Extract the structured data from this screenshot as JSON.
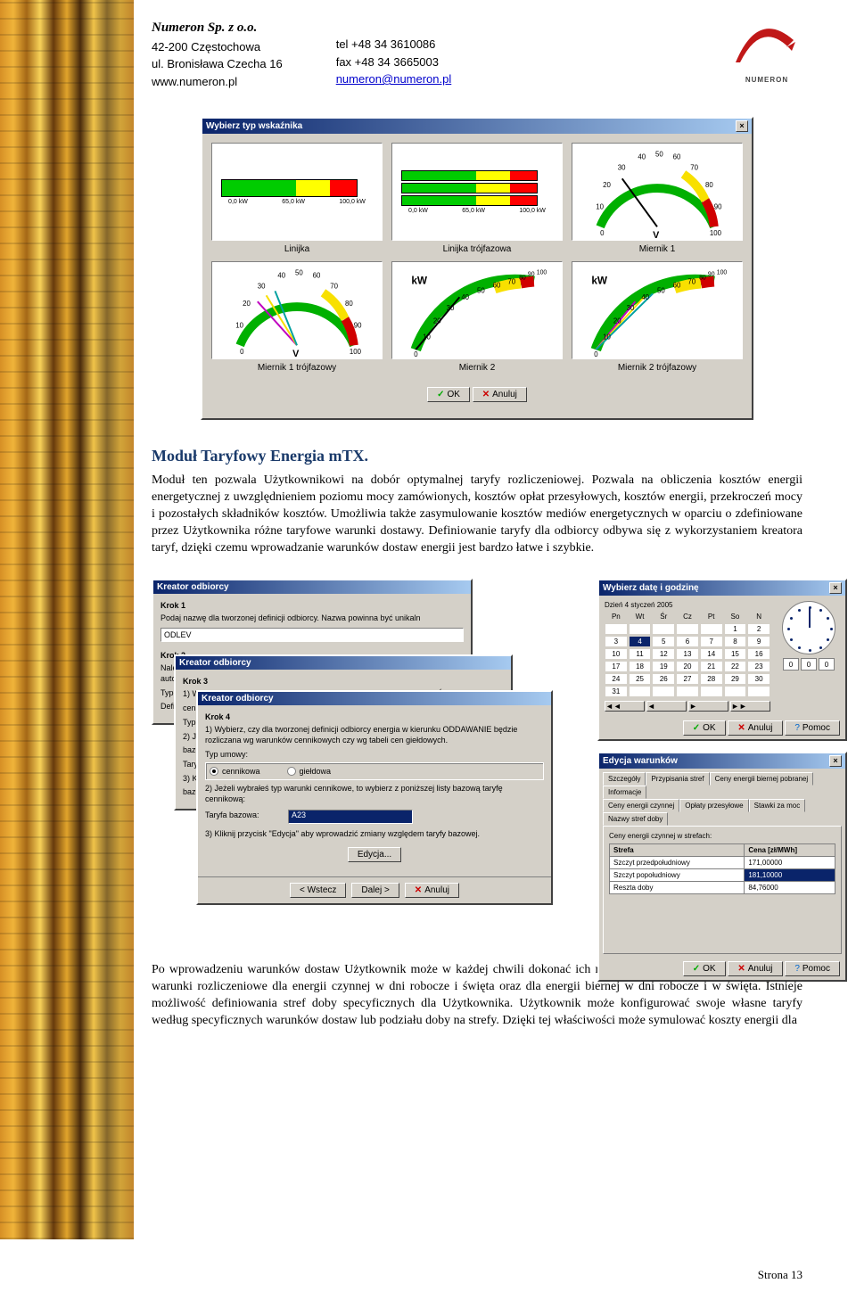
{
  "header": {
    "company_name": "Numeron Sp. z o.o.",
    "address1": "42-200 Częstochowa",
    "address2": "ul. Bronisława Czecha 16",
    "website": "www.numeron.pl",
    "tel": "tel +48 34 3610086",
    "fax": "fax +48 34 3665003",
    "email": "numeron@numeron.pl",
    "logo_text": "NUMERON",
    "logo_color": "#c01818"
  },
  "gauge_dialog": {
    "title": "Wybierz typ wskaźnika",
    "ok_label": "OK",
    "cancel_label": "Anuluj",
    "ruler_ticks": [
      "0,0 kW",
      "65,0 kW",
      "100,0 kW"
    ],
    "gauges": [
      {
        "label": "Linijka"
      },
      {
        "label": "Linijka trójfazowa"
      },
      {
        "label": "Miernik 1",
        "unit": "V",
        "scale": [
          "0",
          "10",
          "20",
          "30",
          "40",
          "50",
          "60",
          "70",
          "80",
          "90",
          "100"
        ]
      },
      {
        "label": "Miernik 1 trójfazowy",
        "unit": "V",
        "scale": [
          "0",
          "10",
          "20",
          "30",
          "40",
          "50",
          "60",
          "70",
          "80",
          "90",
          "100"
        ]
      },
      {
        "label": "Miernik 2",
        "unit": "kW",
        "scale": [
          "0",
          "10",
          "20",
          "30",
          "40",
          "50",
          "60",
          "70",
          "80",
          "90",
          "100"
        ]
      },
      {
        "label": "Miernik 2 trójfazowy",
        "unit": "kW",
        "scale": [
          "0",
          "10",
          "20",
          "30",
          "40",
          "50",
          "60",
          "70",
          "80",
          "90",
          "100"
        ]
      }
    ],
    "colors": {
      "green": "#00b000",
      "yellow": "#f8e000",
      "red": "#d00000",
      "needle1": "#c000c0",
      "needle2": "#00a0a0"
    }
  },
  "section": {
    "title": "Moduł Taryfowy Energia mTX.",
    "para1": "Moduł ten pozwala Użytkownikowi na dobór optymalnej taryfy rozliczeniowej. Pozwala na obliczenia kosztów energii energetycznej z uwzględnieniem poziomu mocy zamówionych, kosztów opłat przesyłowych, kosztów energii, przekroczeń mocy i pozostałych składników kosztów. Umożliwia także zasymulowanie kosztów mediów energetycznych w oparciu o zdefiniowane przez Użytkownika różne taryfowe warunki dostawy. Definiowanie taryfy dla odbiorcy odbywa się z wykorzystaniem kreatora taryf, dzięki czemu wprowadzanie warunków dostaw energii jest bardzo łatwe i szybkie.",
    "para2": "Po wprowadzeniu warunków dostaw Użytkownik może w każdej chwili dokonać ich modyfikacji. Osobno przechowywane są warunki rozliczeniowe dla energii czynnej w dni robocze i święta oraz dla energii biernej w dni robocze i w święta. Istnieje możliwość definiowania stref doby specyficznych dla Użytkownika. Użytkownik może konfigurować swoje własne taryfy według specyficznych warunków dostaw lub podziału doby na strefy. Dzięki tej właściwości może symulować koszty energii dla"
  },
  "wizard": {
    "title": "Kreator odbiorcy",
    "back": "< Wstecz",
    "next": "Dalej >",
    "cancel": "Anuluj",
    "edit": "Edycja...",
    "step1": {
      "title": "Krok 1",
      "text": "Podaj nazwę dla tworzonej definicji odbiorcy. Nazwa powinna być unikaln",
      "value": "ODLEV"
    },
    "step2": {
      "title": "Krok 2",
      "text": "Należy określić początek obowiązywania tworzonej definicji odbiorcy. Program automatycznie ustali go w dniu dzisiejszym. Aby zmienić tę date",
      "typ_um": "Typ um",
      "def": "Definicj"
    },
    "step3": {
      "title": "Krok 3",
      "text1": "1) Wybierz, czy dla tworzonej definicji odbiorcy energia w kierunku POBÓR b",
      "cen": "cen gieł",
      "typ": "Typ um",
      "cennik": "cer",
      "text2": "2) Jeżeli",
      "bazowa": "bazową t",
      "taryfa": "Taryfa ba",
      "text3": "3) Klikn",
      "bazowej": "bazowej"
    },
    "step4": {
      "title": "Krok 4",
      "text1": "1) Wybierz, czy dla tworzonej definicji odbiorcy energia w kierunku ODDAWANIE będzie rozliczana wg warunków cennikowych czy wg tabeli cen giełdowych.",
      "typ_label": "Typ umowy:",
      "radio1": "cennikowa",
      "radio2": "giełdowa",
      "text2": "2) Jeżeli wybrałeś typ warunki cennikowe, to wybierz z poniższej listy bazową taryfę cennikową:",
      "taryfa_label": "Taryfa bazowa:",
      "taryfa_value": "A23",
      "text3": "3) Kliknij przycisk \"Edycja\" aby wprowadzić zmiany względem taryfy bazowej."
    }
  },
  "date_dialog": {
    "title": "Wybierz datę i godzinę",
    "header": "Dzień    4 styczeń 2005",
    "days": [
      "Pn",
      "Wt",
      "Śr",
      "Cz",
      "Pt",
      "So",
      "N"
    ],
    "weeks": [
      [
        "",
        "",
        "",
        "",
        "",
        "1",
        "2"
      ],
      [
        "3",
        "4",
        "5",
        "6",
        "7",
        "8",
        "9"
      ],
      [
        "10",
        "11",
        "12",
        "13",
        "14",
        "15",
        "16"
      ],
      [
        "17",
        "18",
        "19",
        "20",
        "21",
        "22",
        "23"
      ],
      [
        "24",
        "25",
        "26",
        "27",
        "28",
        "29",
        "30"
      ],
      [
        "31",
        "",
        "",
        "",
        "",
        "",
        ""
      ]
    ],
    "selected": "4",
    "nav": [
      "◄◄",
      "◄",
      "►",
      "►►"
    ],
    "time": [
      "0",
      "0",
      "0"
    ],
    "ok": "OK",
    "cancel": "Anuluj",
    "help": "Pomoc"
  },
  "edit_dialog": {
    "title": "Edycja warunków",
    "tabs_row1": [
      "Szczegóły",
      "Przypisania stref",
      "Ceny energii biernej pobranej",
      "Informacje"
    ],
    "tabs_row2": [
      "Ceny energii czynnej",
      "Opłaty przesyłowe",
      "Stawki za moc",
      "Nazwy stref doby"
    ],
    "active_tab": "Ceny energii czynnej",
    "content_label": "Ceny energii czynnej w strefach:",
    "table_headers": [
      "Strefa",
      "Cena [zł/MWh]"
    ],
    "table_rows": [
      [
        "Szczyt przedpołudniowy",
        "171,00000"
      ],
      [
        "Szczyt popołudniowy",
        "181,10000"
      ],
      [
        "Reszta doby",
        "84,76000"
      ]
    ],
    "selected_row": 1,
    "ok": "OK",
    "cancel": "Anuluj",
    "help": "Pomoc"
  },
  "footer": "Strona 13"
}
